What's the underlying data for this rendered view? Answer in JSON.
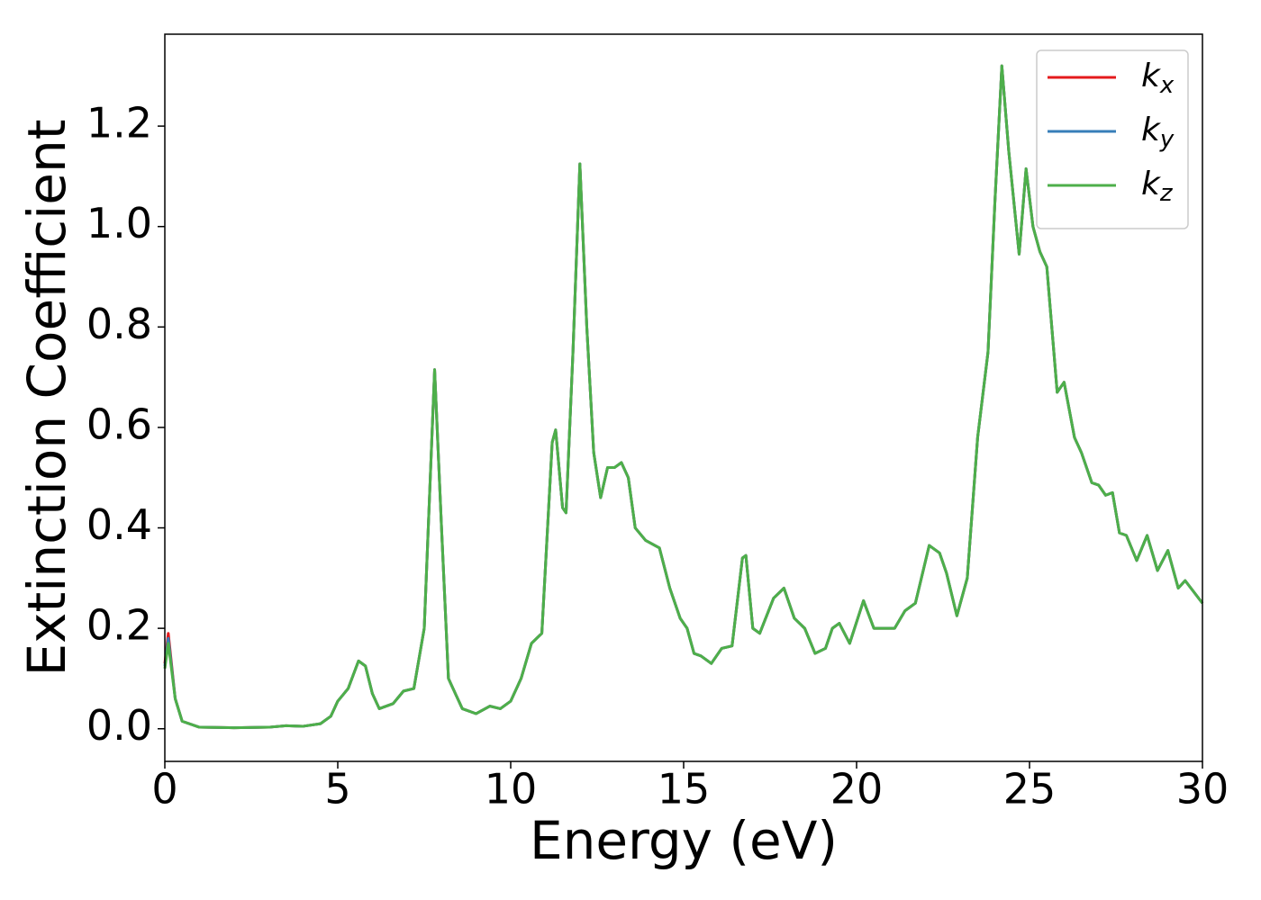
{
  "chart_data": {
    "type": "line",
    "xlabel": "Energy (eV)",
    "ylabel": "Extinction Coefficient",
    "x": [
      0.0,
      0.1,
      0.3,
      0.5,
      1.0,
      2.0,
      3.0,
      3.5,
      4.0,
      4.5,
      4.8,
      5.0,
      5.3,
      5.6,
      5.8,
      6.0,
      6.2,
      6.6,
      6.9,
      7.2,
      7.5,
      7.8,
      8.0,
      8.2,
      8.6,
      9.0,
      9.4,
      9.7,
      10.0,
      10.3,
      10.6,
      10.9,
      11.2,
      11.3,
      11.5,
      11.6,
      11.8,
      12.0,
      12.2,
      12.4,
      12.6,
      12.8,
      13.0,
      13.2,
      13.4,
      13.6,
      13.9,
      14.3,
      14.6,
      14.9,
      15.1,
      15.3,
      15.5,
      15.8,
      16.1,
      16.4,
      16.7,
      16.8,
      17.0,
      17.2,
      17.6,
      17.9,
      18.2,
      18.5,
      18.8,
      19.1,
      19.3,
      19.5,
      19.8,
      20.2,
      20.5,
      20.9,
      21.1,
      21.4,
      21.7,
      22.1,
      22.4,
      22.6,
      22.9,
      23.2,
      23.5,
      23.8,
      24.0,
      24.2,
      24.4,
      24.7,
      24.9,
      25.1,
      25.3,
      25.5,
      25.8,
      26.0,
      26.3,
      26.5,
      26.8,
      27.0,
      27.2,
      27.4,
      27.6,
      27.8,
      28.1,
      28.4,
      28.7,
      29.0,
      29.3,
      29.5,
      30.0
    ],
    "series": [
      {
        "name": "kx",
        "color": "#e41a1c",
        "values": [
          0.13,
          0.19,
          0.06,
          0.015,
          0.003,
          0.002,
          0.003,
          0.006,
          0.005,
          0.01,
          0.025,
          0.055,
          0.08,
          0.135,
          0.125,
          0.07,
          0.04,
          0.05,
          0.075,
          0.08,
          0.2,
          0.715,
          0.4,
          0.1,
          0.04,
          0.03,
          0.045,
          0.04,
          0.055,
          0.1,
          0.17,
          0.19,
          0.57,
          0.595,
          0.44,
          0.43,
          0.75,
          1.125,
          0.8,
          0.55,
          0.46,
          0.52,
          0.52,
          0.53,
          0.5,
          0.4,
          0.375,
          0.36,
          0.28,
          0.22,
          0.2,
          0.15,
          0.145,
          0.13,
          0.16,
          0.165,
          0.34,
          0.345,
          0.2,
          0.19,
          0.26,
          0.28,
          0.22,
          0.2,
          0.15,
          0.16,
          0.2,
          0.21,
          0.17,
          0.255,
          0.2,
          0.2,
          0.2,
          0.235,
          0.25,
          0.365,
          0.35,
          0.31,
          0.225,
          0.3,
          0.58,
          0.75,
          1.05,
          1.32,
          1.15,
          0.945,
          1.115,
          1.0,
          0.95,
          0.92,
          0.67,
          0.69,
          0.58,
          0.55,
          0.49,
          0.485,
          0.465,
          0.47,
          0.39,
          0.385,
          0.335,
          0.385,
          0.315,
          0.355,
          0.28,
          0.295,
          0.25
        ]
      },
      {
        "name": "ky",
        "color": "#377eb8",
        "values": [
          0.125,
          0.18,
          0.06,
          0.015,
          0.003,
          0.002,
          0.003,
          0.006,
          0.005,
          0.01,
          0.025,
          0.055,
          0.08,
          0.135,
          0.125,
          0.07,
          0.04,
          0.05,
          0.075,
          0.08,
          0.2,
          0.715,
          0.4,
          0.1,
          0.04,
          0.03,
          0.045,
          0.04,
          0.055,
          0.1,
          0.17,
          0.19,
          0.57,
          0.595,
          0.44,
          0.43,
          0.75,
          1.125,
          0.8,
          0.55,
          0.46,
          0.52,
          0.52,
          0.53,
          0.5,
          0.4,
          0.375,
          0.36,
          0.28,
          0.22,
          0.2,
          0.15,
          0.145,
          0.13,
          0.16,
          0.165,
          0.34,
          0.345,
          0.2,
          0.19,
          0.26,
          0.28,
          0.22,
          0.2,
          0.15,
          0.16,
          0.2,
          0.21,
          0.17,
          0.255,
          0.2,
          0.2,
          0.2,
          0.235,
          0.25,
          0.365,
          0.35,
          0.31,
          0.225,
          0.3,
          0.58,
          0.75,
          1.05,
          1.32,
          1.15,
          0.945,
          1.115,
          1.0,
          0.95,
          0.92,
          0.67,
          0.69,
          0.58,
          0.55,
          0.49,
          0.485,
          0.465,
          0.47,
          0.39,
          0.385,
          0.335,
          0.385,
          0.315,
          0.355,
          0.28,
          0.295,
          0.25
        ]
      },
      {
        "name": "kz",
        "color": "#4daf4a",
        "values": [
          0.12,
          0.17,
          0.06,
          0.015,
          0.003,
          0.002,
          0.003,
          0.006,
          0.005,
          0.01,
          0.025,
          0.055,
          0.08,
          0.135,
          0.125,
          0.07,
          0.04,
          0.05,
          0.075,
          0.08,
          0.2,
          0.715,
          0.4,
          0.1,
          0.04,
          0.03,
          0.045,
          0.04,
          0.055,
          0.1,
          0.17,
          0.19,
          0.57,
          0.595,
          0.44,
          0.43,
          0.75,
          1.125,
          0.8,
          0.55,
          0.46,
          0.52,
          0.52,
          0.53,
          0.5,
          0.4,
          0.375,
          0.36,
          0.28,
          0.22,
          0.2,
          0.15,
          0.145,
          0.13,
          0.16,
          0.165,
          0.34,
          0.345,
          0.2,
          0.19,
          0.26,
          0.28,
          0.22,
          0.2,
          0.15,
          0.16,
          0.2,
          0.21,
          0.17,
          0.255,
          0.2,
          0.2,
          0.2,
          0.235,
          0.25,
          0.365,
          0.35,
          0.31,
          0.225,
          0.3,
          0.58,
          0.75,
          1.05,
          1.32,
          1.15,
          0.945,
          1.115,
          1.0,
          0.95,
          0.92,
          0.67,
          0.69,
          0.58,
          0.55,
          0.49,
          0.485,
          0.465,
          0.47,
          0.39,
          0.385,
          0.335,
          0.385,
          0.315,
          0.355,
          0.28,
          0.295,
          0.25
        ]
      }
    ],
    "xlim": [
      0,
      30
    ],
    "xticks": [
      0,
      5,
      10,
      15,
      20,
      25,
      30
    ],
    "ylim": [
      -0.065,
      1.383
    ],
    "yticks": [
      {
        "value": 0,
        "label": "0.0"
      },
      0.2,
      0.4,
      0.6,
      0.8,
      {
        "value": 1,
        "label": "1.0"
      },
      1.2
    ],
    "grid": false,
    "legend": "upper right"
  }
}
